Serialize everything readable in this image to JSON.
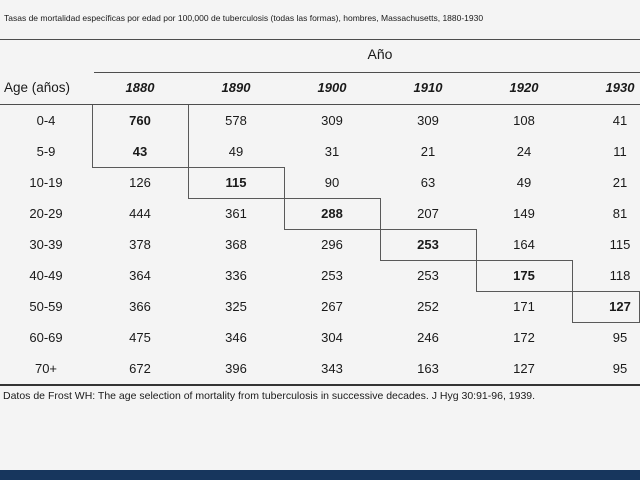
{
  "title": "Tasas de mortalidad específicas por edad por 100,000 de tuberculosis (todas las formas), hombres, Massachusetts, 1880-1930",
  "table": {
    "group_header": "Año",
    "age_header": "Age (años)",
    "years": [
      "1880",
      "1890",
      "1900",
      "1910",
      "1920",
      "1930"
    ],
    "rows": [
      {
        "age": "0-4",
        "values": [
          "760",
          "578",
          "309",
          "309",
          "108",
          "41"
        ],
        "bold_col": 0
      },
      {
        "age": "5-9",
        "values": [
          "43",
          "49",
          "31",
          "21",
          "24",
          "11"
        ],
        "bold_col": 0
      },
      {
        "age": "10-19",
        "values": [
          "126",
          "115",
          "90",
          "63",
          "49",
          "21"
        ],
        "bold_col": 1
      },
      {
        "age": "20-29",
        "values": [
          "444",
          "361",
          "288",
          "207",
          "149",
          "81"
        ],
        "bold_col": 2
      },
      {
        "age": "30-39",
        "values": [
          "378",
          "368",
          "296",
          "253",
          "164",
          "115"
        ],
        "bold_col": 3
      },
      {
        "age": "40-49",
        "values": [
          "364",
          "336",
          "253",
          "253",
          "175",
          "118"
        ],
        "bold_col": 4
      },
      {
        "age": "50-59",
        "values": [
          "366",
          "325",
          "267",
          "252",
          "171",
          "127"
        ],
        "bold_col": 5
      },
      {
        "age": "60-69",
        "values": [
          "475",
          "346",
          "304",
          "246",
          "172",
          "95"
        ],
        "bold_col": -1
      },
      {
        "age": "70+",
        "values": [
          "672",
          "396",
          "343",
          "163",
          "127",
          "95"
        ],
        "bold_col": -1
      }
    ]
  },
  "footer": "Datos de Frost WH: The age selection of mortality from tuberculosis in successive decades. J Hyg 30:91-96, 1939.",
  "colors": {
    "accent_bar": "#17365d",
    "step_line": "#595959",
    "rule": "#4d4d4d",
    "background": "#f4f4f4"
  }
}
